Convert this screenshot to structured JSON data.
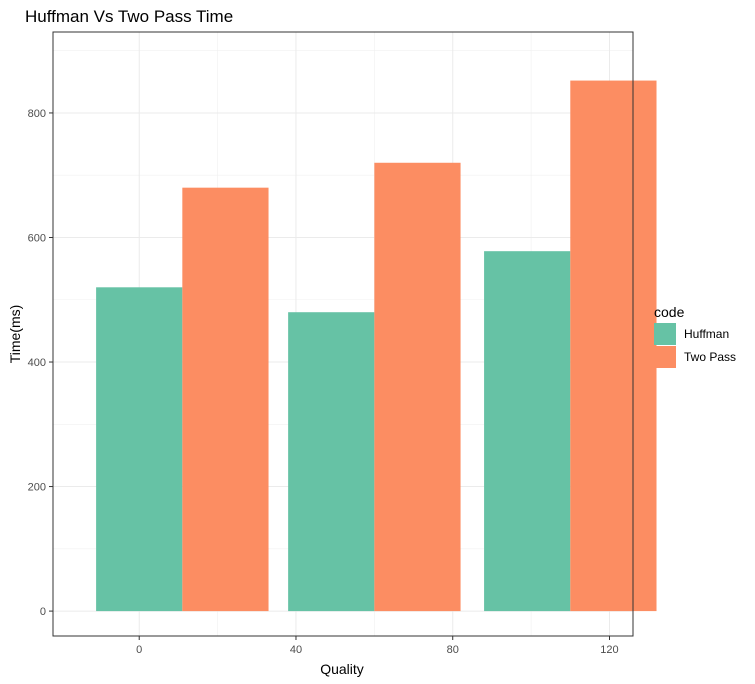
{
  "chart_data": {
    "type": "bar",
    "title": "Huffman Vs Two Pass Time",
    "xlabel": "Quality",
    "ylabel": "Time(ms)",
    "x_ticks": [
      0,
      40,
      80,
      120
    ],
    "y_ticks": [
      0,
      200,
      400,
      600,
      800
    ],
    "xlim": [
      -22,
      126
    ],
    "ylim": [
      -40,
      930
    ],
    "categories": [
      11,
      60,
      110
    ],
    "series": [
      {
        "name": "Huffman",
        "color": "#66c2a5",
        "values": [
          520,
          480,
          578
        ]
      },
      {
        "name": "Two Pass",
        "color": "#fc8d62",
        "values": [
          680,
          720,
          852
        ]
      }
    ],
    "legend": {
      "title": "code",
      "position": "right"
    },
    "grid": true,
    "panel_border": true
  }
}
